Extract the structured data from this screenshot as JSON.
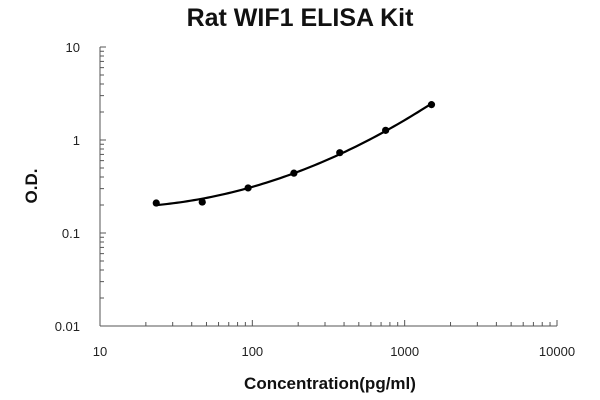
{
  "chart_data": {
    "type": "scatter",
    "title": "Rat WIF1 ELISA Kit",
    "xlabel": "Concentration(pg/ml)",
    "ylabel": "O.D.",
    "x_scale": "log",
    "y_scale": "log",
    "xlim": [
      10,
      10000
    ],
    "ylim": [
      0.01,
      10
    ],
    "x_ticks": [
      "10",
      "100",
      "1000",
      "10000"
    ],
    "y_ticks": [
      "0.01",
      "0.1",
      "1",
      "10"
    ],
    "grid": false,
    "legend": "none",
    "series": [
      {
        "x": [
          23.4,
          46.9,
          93.8,
          187.5,
          375,
          750,
          1500
        ],
        "y": [
          0.21,
          0.215,
          0.305,
          0.44,
          0.73,
          1.27,
          2.4
        ],
        "marker": "circle",
        "fit": "smooth-curve",
        "color": "#000000"
      }
    ]
  }
}
